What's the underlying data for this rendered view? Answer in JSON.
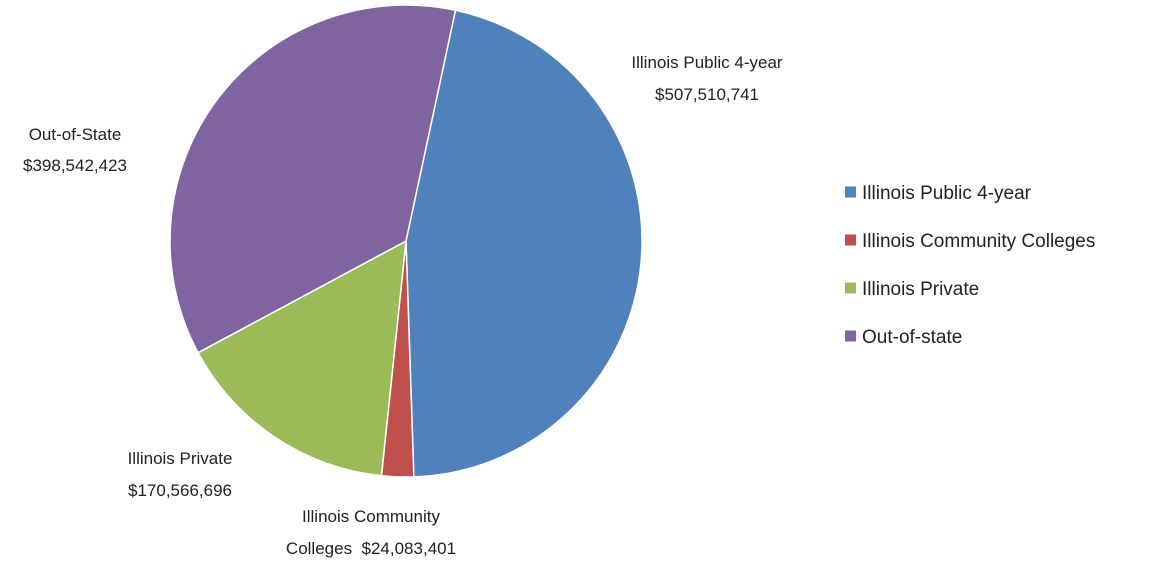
{
  "chart_data": {
    "type": "pie",
    "title": "",
    "slices": [
      {
        "label": "Illinois Public 4-year",
        "label_line1": "Illinois Public 4-year",
        "label_line2": "$507,510,741",
        "value": 507510741,
        "color": "#4F81BD"
      },
      {
        "label": "Illinois Community Colleges",
        "label_line1": "Illinois Community",
        "label_line2": "Colleges  $24,083,401",
        "value": 24083401,
        "color": "#C0504D"
      },
      {
        "label": "Illinois Private",
        "label_line1": "Illinois Private",
        "label_line2": "$170,566,696",
        "value": 170566696,
        "color": "#9BBB59"
      },
      {
        "label": "Out-of-State",
        "label_line1": "Out-of-State",
        "label_line2": "$398,542,423",
        "value": 398542423,
        "color": "#8064A2"
      }
    ],
    "legend": {
      "position": "right",
      "entries": [
        {
          "label": "Illinois Public 4-year",
          "color": "#4F81BD"
        },
        {
          "label": "Illinois Community Colleges",
          "color": "#C0504D"
        },
        {
          "label": "Illinois Private",
          "color": "#9BBB59"
        },
        {
          "label": "Out-of-state",
          "color": "#8064A2"
        }
      ]
    }
  }
}
